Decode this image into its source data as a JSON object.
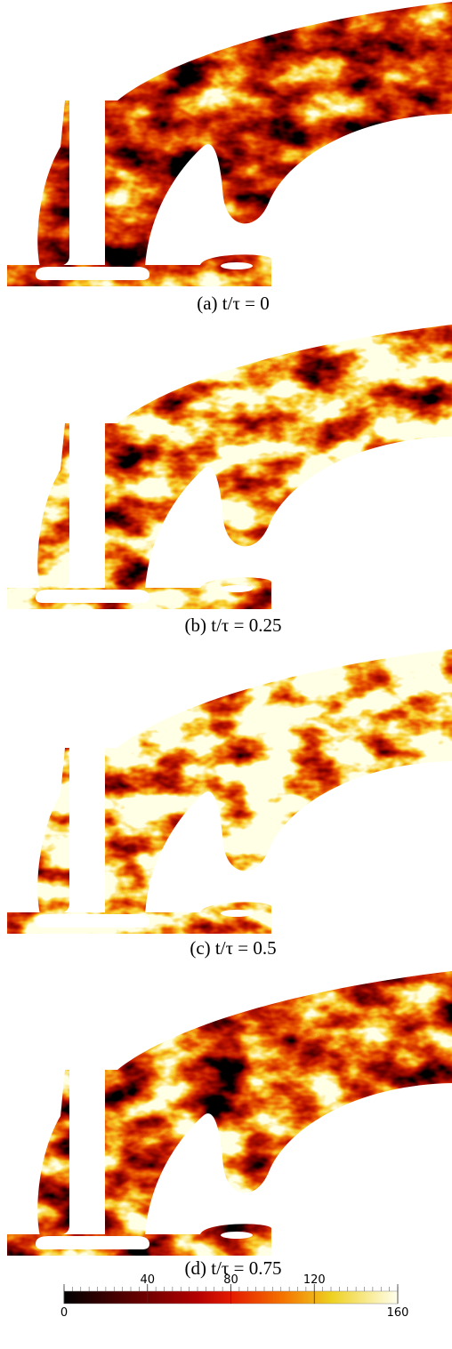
{
  "figure": {
    "panels": [
      {
        "caption": "(a) t/τ = 0"
      },
      {
        "caption": "(b) t/τ = 0.25"
      },
      {
        "caption": "(c) t/τ = 0.5"
      },
      {
        "caption": "(d) t/τ = 0.75"
      }
    ],
    "colorbar": {
      "range": [
        0,
        160
      ],
      "ticks": [
        0,
        40,
        80,
        120,
        160
      ]
    }
  }
}
